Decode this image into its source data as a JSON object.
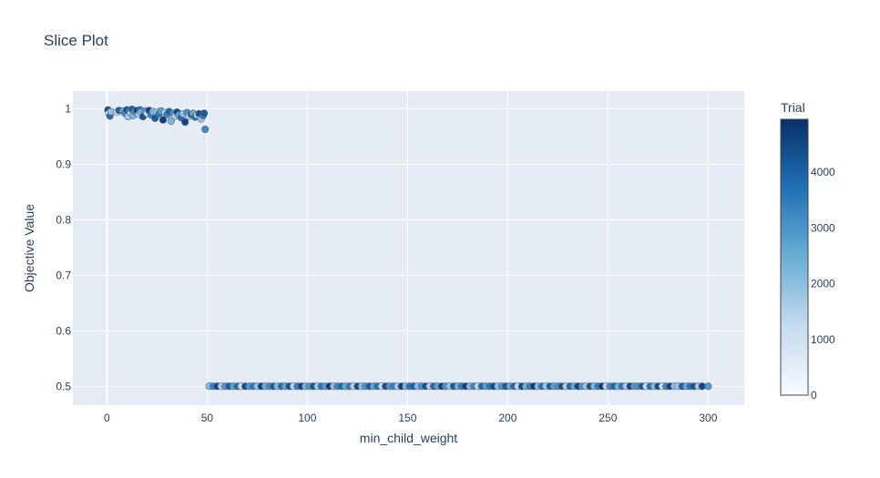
{
  "chart_data": {
    "type": "scatter",
    "title": "Slice Plot",
    "xlabel": "min_child_weight",
    "ylabel": "Objective Value",
    "xlim": [
      -17,
      318
    ],
    "ylim": [
      0.466,
      1.032
    ],
    "x_ticks": [
      0,
      50,
      100,
      150,
      200,
      250,
      300
    ],
    "y_ticks": [
      0.5,
      0.6,
      0.7,
      0.8,
      0.9,
      1
    ],
    "grid": true,
    "colorbar": {
      "title": "Trial",
      "range": [
        0,
        4950
      ],
      "ticks": [
        0,
        1000,
        2000,
        3000,
        4000
      ],
      "colorscale": [
        "#f7fbff",
        "#c6dbef",
        "#6baed6",
        "#2171b5",
        "#08306b"
      ]
    },
    "series": [
      {
        "x": [
          0.5,
          1,
          1.5,
          2,
          5,
          6,
          8,
          9,
          10,
          10.5,
          11,
          12,
          12.5,
          13,
          14,
          15,
          16,
          16.5,
          17,
          18,
          19,
          20,
          21,
          22,
          23,
          24,
          25,
          26,
          27,
          28,
          29,
          30,
          31,
          32,
          33,
          34,
          35,
          36,
          37,
          38,
          39,
          40,
          41,
          42,
          43,
          44,
          45,
          46,
          47,
          48,
          48.5,
          49
        ],
        "y": [
          0.998,
          0.992,
          0.987,
          0.995,
          0.994,
          0.997,
          0.996,
          0.992,
          0.998,
          0.986,
          0.997,
          0.993,
          0.999,
          0.988,
          0.995,
          0.997,
          0.99,
          0.998,
          0.994,
          0.986,
          0.996,
          0.992,
          0.997,
          0.989,
          0.995,
          0.983,
          0.994,
          0.991,
          0.996,
          0.98,
          0.993,
          0.99,
          0.995,
          0.978,
          0.992,
          0.987,
          0.994,
          0.989,
          0.984,
          0.991,
          0.976,
          0.993,
          0.987,
          0.99,
          0.992,
          0.985,
          0.989,
          0.991,
          0.982,
          0.988,
          0.992,
          0.963
        ],
        "trial": [
          4500,
          300,
          3900,
          2000,
          1200,
          4200,
          2600,
          3300,
          4800,
          1800,
          3600,
          900,
          4100,
          2400,
          3000,
          4700,
          1500,
          3800,
          2200,
          4400,
          2900,
          1000,
          4600,
          3500,
          2100,
          4300,
          1700,
          3700,
          2800,
          4900,
          1300,
          3400,
          4000,
          2300,
          3100,
          1600,
          4650,
          2700,
          3900,
          1900,
          4750,
          3200,
          1400,
          4100,
          2500,
          3800,
          1100,
          4450,
          2000,
          3600,
          4200,
          3300
        ]
      },
      {
        "x": [
          51,
          53,
          55,
          57,
          59,
          61,
          63,
          65,
          67,
          69,
          71,
          73,
          75,
          77,
          79,
          81,
          83,
          85,
          87,
          89,
          91,
          93,
          95,
          97,
          99,
          101,
          103,
          105,
          107,
          109,
          111,
          113,
          115,
          117,
          119,
          121,
          123,
          125,
          127,
          129,
          131,
          133,
          135,
          137,
          139,
          141,
          143,
          145,
          147,
          149,
          151,
          153,
          155,
          157,
          159,
          161,
          163,
          165,
          167,
          169,
          171,
          173,
          175,
          177,
          179,
          181,
          183,
          185,
          187,
          189,
          191,
          193,
          195,
          197,
          199,
          201,
          203,
          205,
          207,
          209,
          211,
          213,
          215,
          217,
          219,
          221,
          223,
          225,
          227,
          229,
          231,
          233,
          235,
          237,
          239,
          241,
          243,
          245,
          247,
          249,
          251,
          253,
          255,
          257,
          259,
          261,
          263,
          265,
          267,
          269,
          271,
          273,
          275,
          277,
          279,
          281,
          283,
          285,
          287,
          289,
          291,
          293,
          295,
          297,
          300
        ],
        "y": [
          0.5,
          0.5,
          0.5,
          0.5,
          0.5,
          0.5,
          0.5,
          0.5,
          0.5,
          0.5,
          0.5,
          0.5,
          0.5,
          0.5,
          0.5,
          0.5,
          0.5,
          0.5,
          0.5,
          0.5,
          0.5,
          0.5,
          0.5,
          0.5,
          0.5,
          0.5,
          0.5,
          0.5,
          0.5,
          0.5,
          0.5,
          0.5,
          0.5,
          0.5,
          0.5,
          0.5,
          0.5,
          0.5,
          0.5,
          0.5,
          0.5,
          0.5,
          0.5,
          0.5,
          0.5,
          0.5,
          0.5,
          0.5,
          0.5,
          0.5,
          0.5,
          0.5,
          0.5,
          0.5,
          0.5,
          0.5,
          0.5,
          0.5,
          0.5,
          0.5,
          0.5,
          0.5,
          0.5,
          0.5,
          0.5,
          0.5,
          0.5,
          0.5,
          0.5,
          0.5,
          0.5,
          0.5,
          0.5,
          0.5,
          0.5,
          0.5,
          0.5,
          0.5,
          0.5,
          0.5,
          0.5,
          0.5,
          0.5,
          0.5,
          0.5,
          0.5,
          0.5,
          0.5,
          0.5,
          0.5,
          0.5,
          0.5,
          0.5,
          0.5,
          0.5,
          0.5,
          0.5,
          0.5,
          0.5,
          0.5,
          0.5,
          0.5,
          0.5,
          0.5,
          0.5,
          0.5,
          0.5,
          0.5,
          0.5,
          0.5,
          0.5,
          0.5,
          0.5,
          0.5,
          0.5,
          0.5,
          0.5,
          0.5,
          0.5,
          0.5,
          0.5,
          0.5,
          0.5,
          0.5,
          0.5
        ],
        "trial": [
          2200,
          3400,
          4600,
          1500,
          3100,
          4200,
          2700,
          3800,
          1100,
          4500,
          2900,
          3600,
          1800,
          4800,
          2400,
          3200,
          4100,
          2000,
          3900,
          2600,
          4400,
          1300,
          3500,
          4700,
          2300,
          3000,
          4300,
          1700,
          3700,
          2800,
          4900,
          1900,
          3300,
          4000,
          2500,
          3600,
          1400,
          4600,
          2100,
          3100,
          4200,
          2700,
          3800,
          1200,
          4500,
          2900,
          3400,
          1600,
          4800,
          2200,
          3700,
          4100,
          2000,
          3200,
          4400,
          1500,
          3900,
          2600,
          4700,
          3000,
          1800,
          4300,
          2400,
          3500,
          4900,
          2100,
          3300,
          1300,
          4000,
          2800,
          3600,
          4600,
          1900,
          3100,
          4200,
          2500,
          3800,
          1100,
          4500,
          2300,
          3400,
          4800,
          2000,
          3700,
          1600,
          4100,
          2700,
          3200,
          4400,
          1400,
          3900,
          2600,
          4700,
          3000,
          1700,
          4300,
          2200,
          3500,
          4900,
          1200,
          3300,
          4000,
          2400,
          3600,
          1500,
          4600,
          2900,
          3100,
          4200,
          1000,
          3800,
          2100,
          4500,
          900,
          3400,
          4800,
          2000,
          1800,
          4100,
          2600,
          3700,
          4400,
          1600,
          4700,
          3000
        ]
      }
    ]
  }
}
